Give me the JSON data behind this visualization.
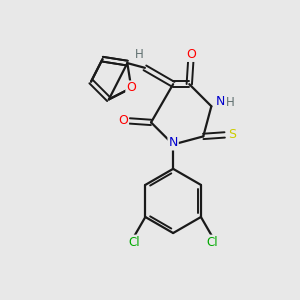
{
  "background_color": "#e8e8e8",
  "bond_color": "#1a1a1a",
  "atom_colors": {
    "O": "#ff0000",
    "N": "#0000cd",
    "S": "#cccc00",
    "Cl": "#00aa00",
    "H_gray": "#607070",
    "C": "#1a1a1a"
  },
  "figsize": [
    3.0,
    3.0
  ],
  "dpi": 100,
  "xlim": [
    0,
    10
  ],
  "ylim": [
    0,
    10
  ]
}
